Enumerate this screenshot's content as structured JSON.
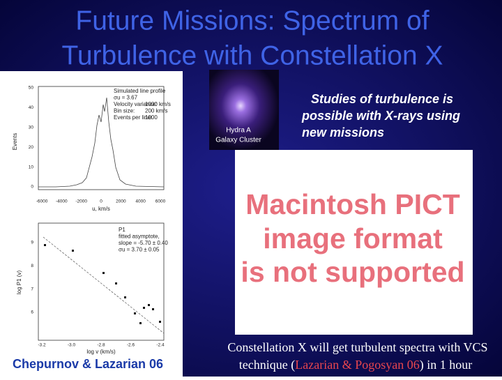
{
  "title": [
    "Future Missions: Spectrum of",
    "Turbulence with Constellation X"
  ],
  "histogram": {
    "y_label": "Events",
    "x_label": "u, km/s",
    "yticks": [
      "50",
      "40",
      "30",
      "20",
      "10",
      "0"
    ],
    "xticks": [
      "-6000",
      "-4000",
      "-2000",
      "0",
      "2000",
      "4000",
      "6000"
    ],
    "legend": [
      "Simulated line profile",
      "σu = 3.67",
      "Velocity variance:",
      "1000 km/s",
      "Bin size:",
      "200 km/s",
      "Events per line:",
      "1000"
    ]
  },
  "spectrum_plot": {
    "y_label": "log P1 (v)",
    "x_label": "log v (km/s)",
    "yticks": [
      "9",
      "8",
      "7",
      "6"
    ],
    "xticks": [
      "-3.2",
      "-3.0",
      "-2.8",
      "-2.6",
      "-2.4"
    ],
    "legend": [
      "P1",
      "fitted asymptote,",
      "slope = -5.70 ± 0.40",
      "σu = 3.70 ± 0.05"
    ]
  },
  "credit": "Chepurnov & Lazarian 06",
  "image_caption": [
    "Hydra A",
    "Galaxy Cluster"
  ],
  "statement": [
    "Studies of turbulence is",
    "possible with X-rays using",
    "new missions"
  ],
  "placeholder": [
    "Macintosh PICT",
    "image format",
    "is not supported"
  ],
  "footer": {
    "line1": "Constellation X will get turbulent spectra with VCS",
    "line2_start": "technique (",
    "line2_ref": "Lazarian & Pogosyan 06",
    "line2_end": ") in 1 hour"
  }
}
